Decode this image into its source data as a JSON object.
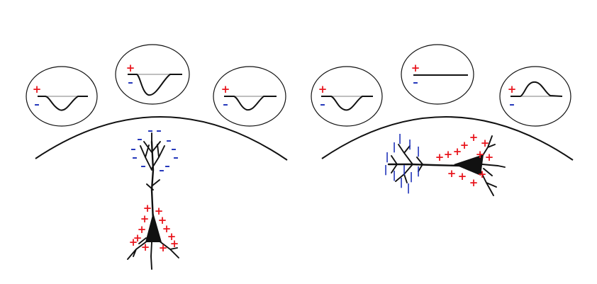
{
  "colors": {
    "positive": "#e8141c",
    "negative": "#1b2fb8",
    "outline": "#111111",
    "baseline": "#9a9a9a",
    "background": "#ffffff"
  },
  "legend_symbols": {
    "positive": "+",
    "negative": "–",
    "dendrite_negative": "|"
  },
  "panels": [
    {
      "name": "vertical-neuron-panel",
      "electrodes": [
        {
          "name": "left",
          "signal": "negative-deflection"
        },
        {
          "name": "center",
          "signal": "negative-deflection"
        },
        {
          "name": "right",
          "signal": "negative-deflection"
        }
      ]
    },
    {
      "name": "horizontal-neuron-panel",
      "electrodes": [
        {
          "name": "left",
          "signal": "negative-deflection"
        },
        {
          "name": "center",
          "signal": "flat"
        },
        {
          "name": "right",
          "signal": "positive-deflection"
        }
      ]
    }
  ]
}
